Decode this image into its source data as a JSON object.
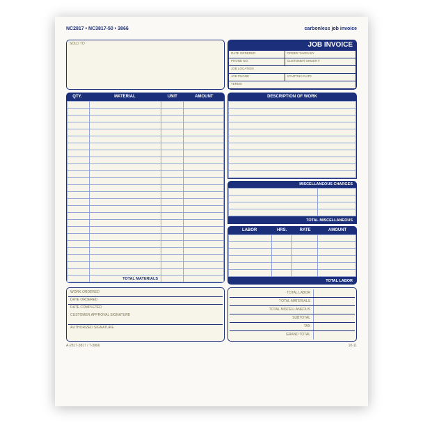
{
  "colors": {
    "navy": "#1b2f7a",
    "cream": "#f7f5e9",
    "paper": "#faf9f5",
    "lightRule": "#8fa3d8",
    "muted": "#7d7552"
  },
  "top": {
    "codes": "NC2817 • NC3817-50 • 3866",
    "carbon": "carbonless job invoice"
  },
  "header": {
    "soldTo": "SOLD TO",
    "jobTitle": "JOB INVOICE",
    "jobFields": [
      [
        "DATE ORDERED",
        "ORDER TAKEN BY"
      ],
      [
        "PHONE NO.",
        "CUSTOMER ORDER #"
      ],
      [
        "JOB LOCATION",
        ""
      ],
      [
        "JOB PHONE",
        "STARTING DATE"
      ],
      [
        "TERMS",
        ""
      ]
    ]
  },
  "materials": {
    "headers": [
      "QTY.",
      "MATERIAL",
      "UNIT",
      "AMOUNT"
    ],
    "colWidths": [
      "14%",
      "46%",
      "14%",
      "26%"
    ],
    "rows": 26,
    "totalLabel": "TOTAL MATERIALS"
  },
  "work": {
    "descHeader": "DESCRIPTION OF WORK",
    "descRows": 11,
    "miscHeader": "MISCELLANEOUS CHARGES",
    "miscRows": 4,
    "miscTotal": "TOTAL MISCELLANEOUS",
    "laborHeaders": [
      "LABOR",
      "HRS.",
      "RATE",
      "AMOUNT"
    ],
    "laborCols": [
      "34%",
      "16%",
      "20%",
      "30%"
    ],
    "laborRows": 6,
    "laborTotal": "TOTAL LABOR"
  },
  "footerLeft": {
    "lines": [
      "WORK ORDERED",
      "DATE ORDERED",
      "DATE COMPLETED"
    ],
    "sig1": "CUSTOMER APPROVAL SIGNATURE",
    "sig2": "AUTHORIZED SIGNATURE"
  },
  "footerRight": {
    "totals": [
      "TOTAL LABOR",
      "TOTAL MATERIALS",
      "TOTAL MISCELLANEOUS",
      "SUBTOTAL",
      "TAX",
      "GRAND TOTAL"
    ]
  },
  "bottom": {
    "left": "A-2817-3817 / T-3866",
    "right": "10-11"
  }
}
